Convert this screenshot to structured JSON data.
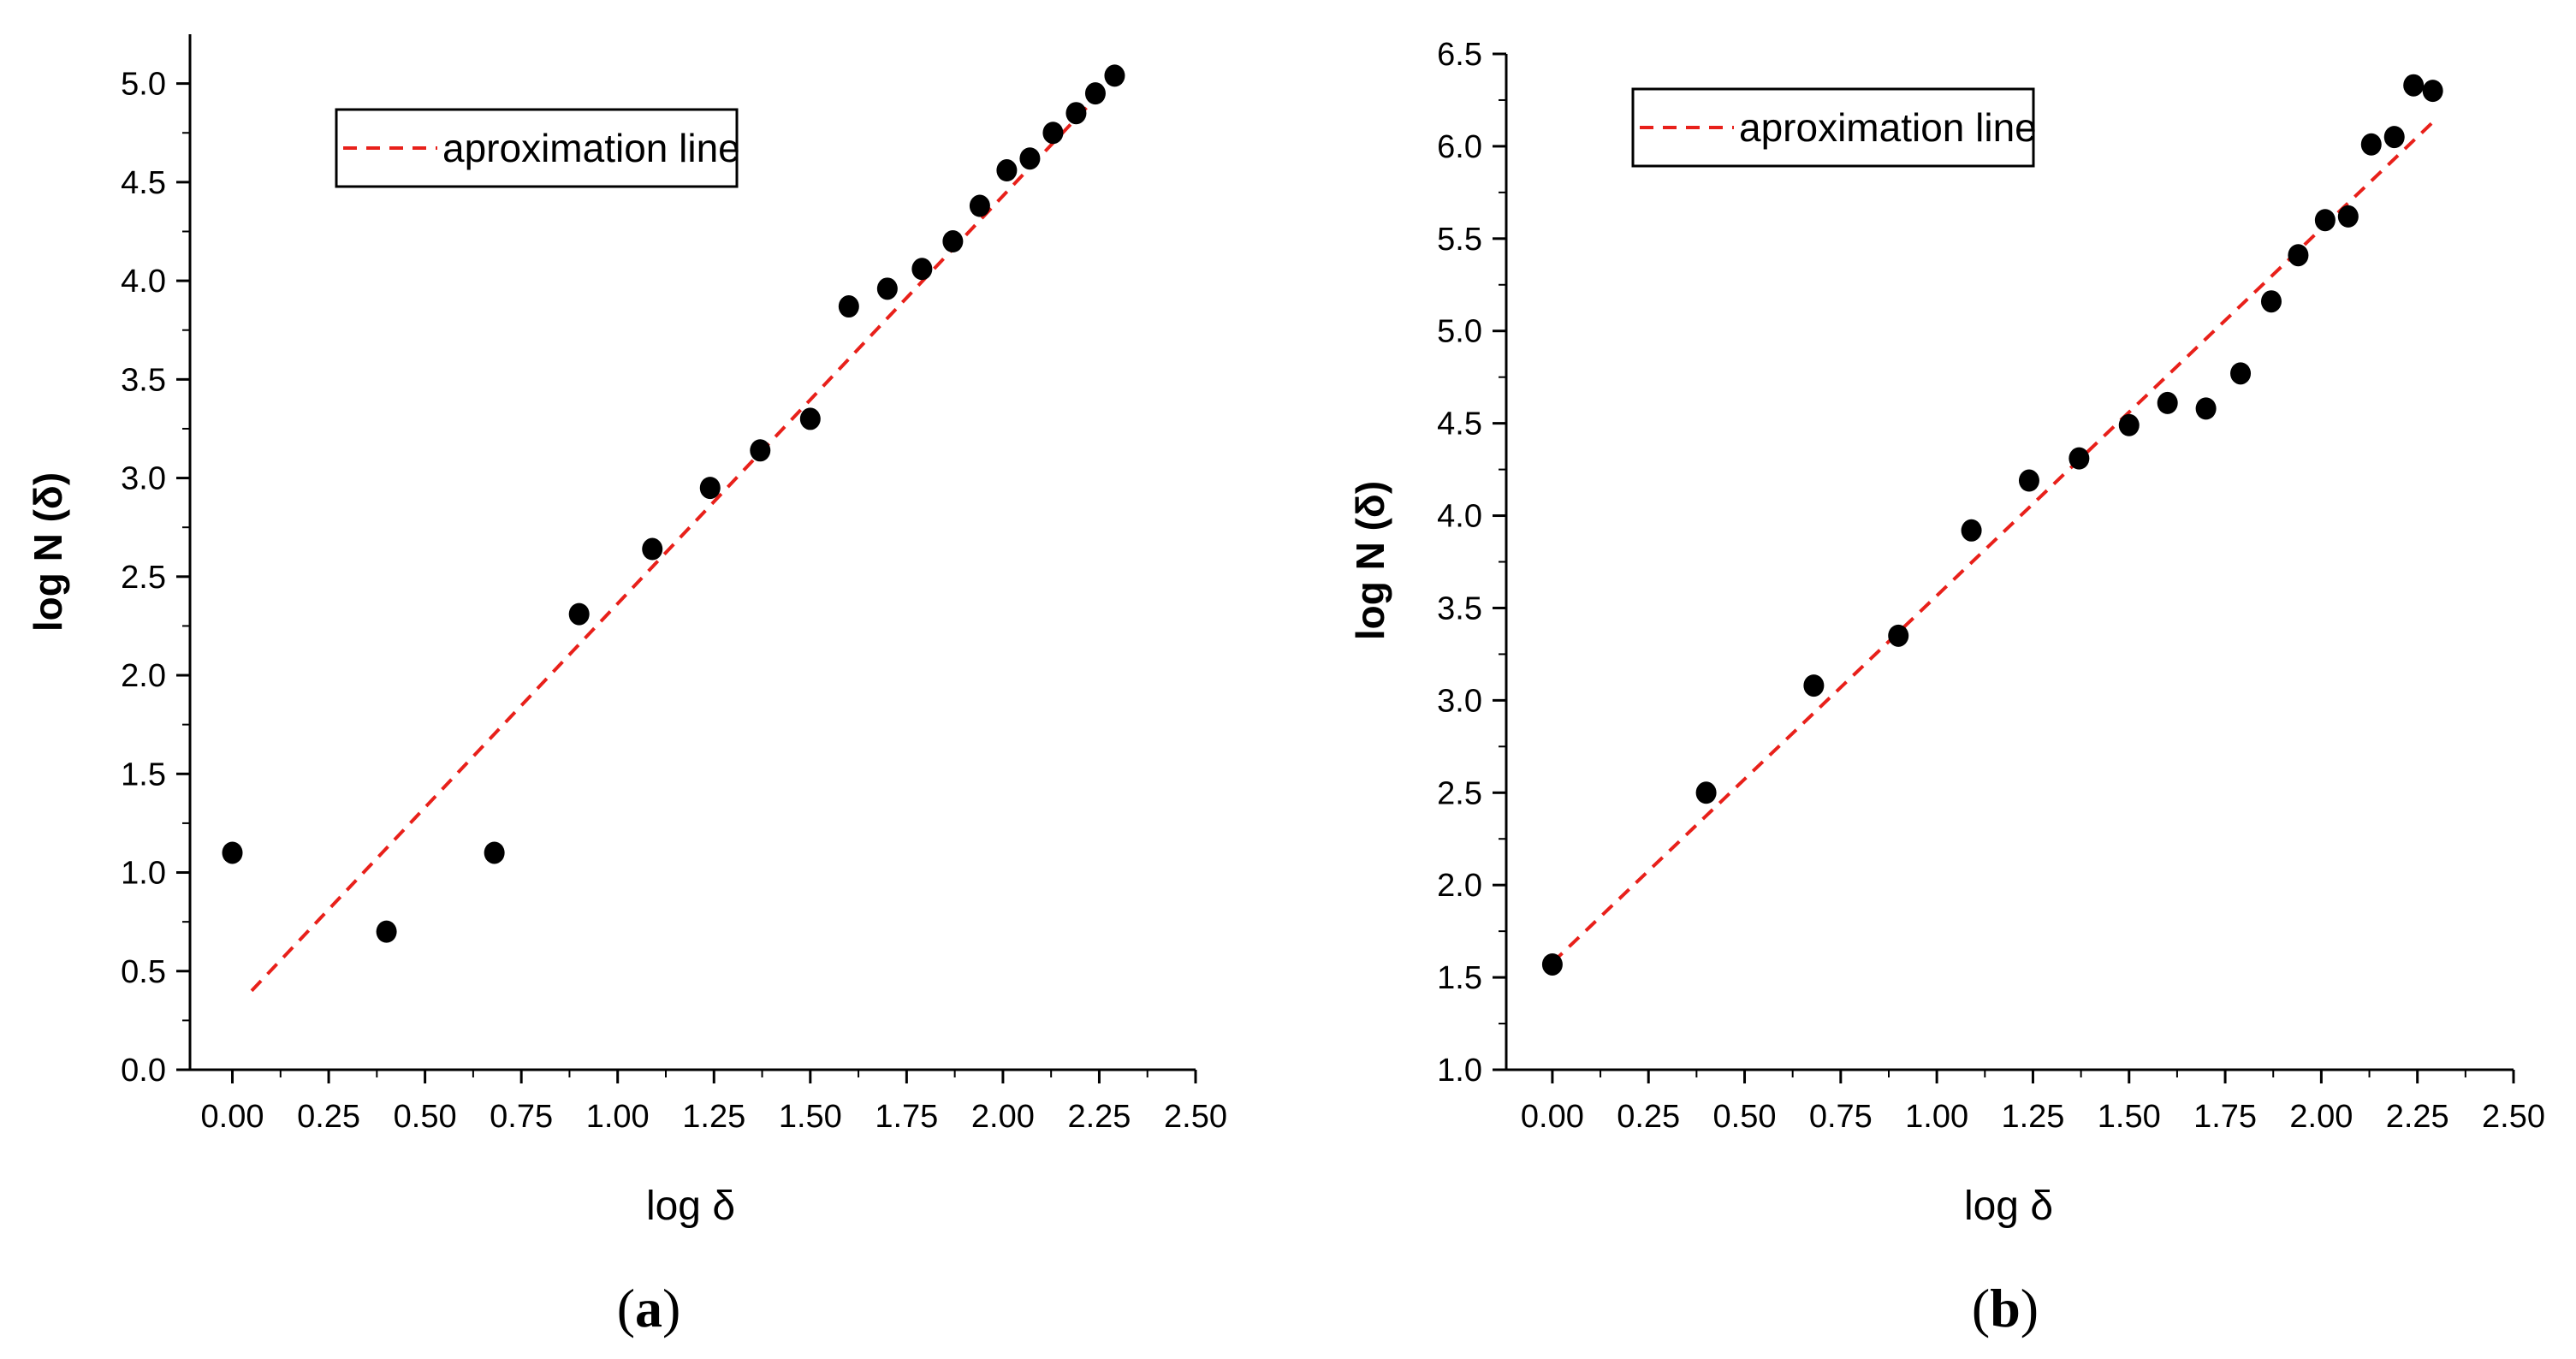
{
  "colors": {
    "points": "#000000",
    "fit_line": "#e8201a",
    "axes": "#000000",
    "background": "#ffffff"
  },
  "chart_data": [
    {
      "panel": "a",
      "panel_label": "a",
      "type": "scatter",
      "xlabel": "log δ",
      "ylabel": "log N (δ)",
      "xlim": [
        -0.11,
        2.5
      ],
      "ylim": [
        0.0,
        5.25
      ],
      "xticks": [
        "0.00",
        "0.25",
        "0.50",
        "0.75",
        "1.00",
        "1.25",
        "1.50",
        "1.75",
        "2.00",
        "2.25",
        "2.50"
      ],
      "yticks": [
        "0.0",
        "0.5",
        "1.0",
        "1.5",
        "2.0",
        "2.5",
        "3.0",
        "3.5",
        "4.0",
        "4.5",
        "5.0"
      ],
      "legend": {
        "label": "aproximation line",
        "position": "top-left"
      },
      "series": [
        {
          "name": "data",
          "x": [
            0.0,
            0.4,
            0.68,
            0.9,
            1.09,
            1.24,
            1.37,
            1.5,
            1.6,
            1.7,
            1.79,
            1.87,
            1.94,
            2.01,
            2.07,
            2.13,
            2.19,
            2.24,
            2.29
          ],
          "y": [
            1.1,
            0.7,
            1.1,
            2.31,
            2.64,
            2.95,
            3.14,
            3.3,
            3.87,
            3.96,
            4.06,
            4.2,
            4.38,
            4.56,
            4.62,
            4.75,
            4.85,
            4.95,
            5.04
          ]
        }
      ],
      "fit_line": {
        "x": [
          0.05,
          2.3
        ],
        "y": [
          0.4,
          5.05
        ]
      }
    },
    {
      "panel": "b",
      "panel_label": "b",
      "type": "scatter",
      "xlabel": "log δ",
      "ylabel": "log N (δ)",
      "xlim": [
        -0.12,
        2.5
      ],
      "ylim": [
        1.0,
        6.5
      ],
      "xticks": [
        "0.00",
        "0.25",
        "0.50",
        "0.75",
        "1.00",
        "1.25",
        "1.50",
        "1.75",
        "2.00",
        "2.25",
        "2.50"
      ],
      "yticks": [
        "1.0",
        "1.5",
        "2.0",
        "2.5",
        "3.0",
        "3.5",
        "4.0",
        "4.5",
        "5.0",
        "5.5",
        "6.0",
        "6.5"
      ],
      "legend": {
        "label": "aproximation line",
        "position": "top-left"
      },
      "series": [
        {
          "name": "data",
          "x": [
            0.0,
            0.4,
            0.68,
            0.9,
            1.09,
            1.24,
            1.37,
            1.5,
            1.6,
            1.7,
            1.79,
            1.87,
            1.94,
            2.01,
            2.07,
            2.13,
            2.19,
            2.24,
            2.29
          ],
          "y": [
            1.57,
            2.5,
            3.08,
            3.35,
            3.92,
            4.19,
            4.31,
            4.49,
            4.61,
            4.58,
            4.77,
            5.16,
            5.41,
            5.6,
            5.62,
            6.01,
            6.05,
            6.33,
            6.3
          ]
        }
      ],
      "fit_line": {
        "x": [
          0.0,
          2.3
        ],
        "y": [
          1.58,
          6.15
        ]
      }
    }
  ]
}
